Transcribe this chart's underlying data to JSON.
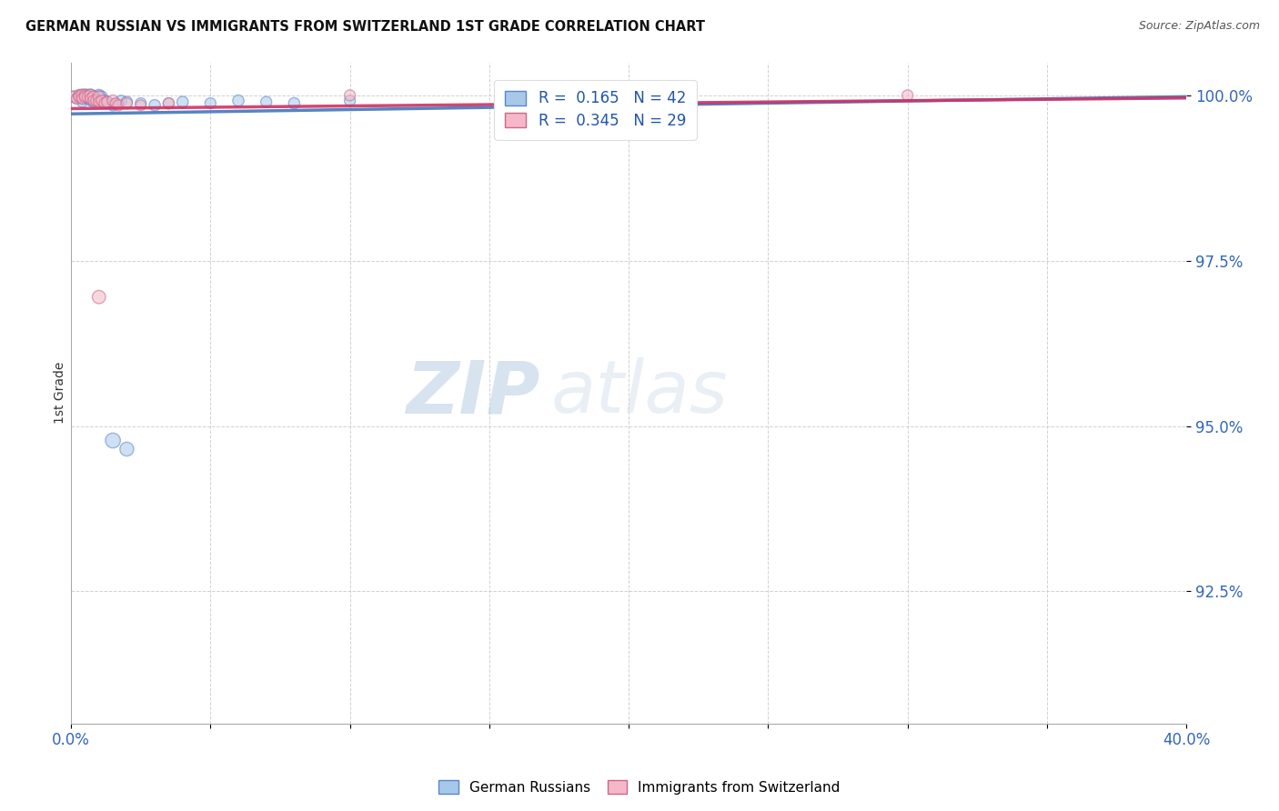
{
  "title": "GERMAN RUSSIAN VS IMMIGRANTS FROM SWITZERLAND 1ST GRADE CORRELATION CHART",
  "source": "Source: ZipAtlas.com",
  "ylabel": "1st Grade",
  "watermark_zip": "ZIP",
  "watermark_atlas": "atlas",
  "legend_line1": "R =  0.165   N = 42",
  "legend_line2": "R =  0.345   N = 29",
  "color_blue_face": "#a8c8e8",
  "color_blue_edge": "#5588cc",
  "color_pink_face": "#f4b8c8",
  "color_pink_edge": "#cc6688",
  "trendline_blue": "#4477bb",
  "trendline_pink": "#cc3366",
  "xlim": [
    0.0,
    0.4
  ],
  "ylim": [
    0.905,
    1.005
  ],
  "ytick_vals": [
    1.0,
    0.975,
    0.95,
    0.925
  ],
  "ytick_labels": [
    "100.0%",
    "97.5%",
    "95.0%",
    "92.5%"
  ],
  "xtick_vals": [
    0.0,
    0.05,
    0.1,
    0.15,
    0.2,
    0.25,
    0.3,
    0.35,
    0.4
  ],
  "xtick_labels": [
    "0.0%",
    "",
    "",
    "",
    "",
    "",
    "",
    "",
    "40.0%"
  ],
  "blue_trend_y0": 0.9972,
  "blue_trend_y1": 0.9998,
  "pink_trend_y0": 0.998,
  "pink_trend_y1": 0.9996,
  "blue_x": [
    0.001,
    0.002,
    0.003,
    0.003,
    0.004,
    0.004,
    0.004,
    0.005,
    0.005,
    0.005,
    0.006,
    0.006,
    0.006,
    0.007,
    0.007,
    0.007,
    0.008,
    0.008,
    0.009,
    0.009,
    0.01,
    0.01,
    0.01,
    0.011,
    0.012,
    0.012,
    0.013,
    0.015,
    0.016,
    0.018,
    0.02,
    0.025,
    0.03,
    0.035,
    0.04,
    0.05,
    0.06,
    0.07,
    0.08,
    0.1,
    0.015,
    0.02
  ],
  "blue_y": [
    0.9998,
    0.9995,
    1.0,
    0.9998,
    1.0,
    0.9995,
    0.999,
    1.0,
    0.9998,
    0.9995,
    1.0,
    0.9998,
    0.9995,
    1.0,
    0.9998,
    0.9992,
    0.9998,
    0.999,
    0.9998,
    0.9995,
    1.0,
    0.9998,
    0.9992,
    0.9998,
    0.9992,
    0.9988,
    0.999,
    0.9985,
    0.9988,
    0.9992,
    0.999,
    0.9988,
    0.9985,
    0.9988,
    0.999,
    0.9988,
    0.9992,
    0.999,
    0.9988,
    0.9992,
    0.9478,
    0.9465
  ],
  "blue_sizes": [
    80,
    70,
    80,
    70,
    90,
    80,
    70,
    100,
    80,
    70,
    90,
    80,
    70,
    100,
    80,
    70,
    80,
    70,
    80,
    70,
    90,
    80,
    70,
    80,
    80,
    70,
    80,
    80,
    70,
    75,
    80,
    75,
    80,
    75,
    80,
    75,
    80,
    75,
    80,
    75,
    140,
    120
  ],
  "pink_x": [
    0.001,
    0.002,
    0.003,
    0.003,
    0.004,
    0.004,
    0.005,
    0.005,
    0.006,
    0.007,
    0.007,
    0.008,
    0.008,
    0.009,
    0.01,
    0.01,
    0.011,
    0.012,
    0.013,
    0.015,
    0.016,
    0.017,
    0.02,
    0.025,
    0.035,
    0.1,
    0.2,
    0.3,
    0.01
  ],
  "pink_y": [
    0.9998,
    0.9995,
    1.0,
    0.9998,
    1.0,
    0.9995,
    1.0,
    0.9998,
    0.9998,
    1.0,
    0.9995,
    0.9998,
    0.9992,
    0.9992,
    0.9998,
    0.999,
    0.9992,
    0.9988,
    0.999,
    0.9992,
    0.9988,
    0.9985,
    0.9988,
    0.9985,
    0.9988,
    1.0,
    1.0,
    1.0,
    0.9695
  ],
  "pink_sizes": [
    80,
    70,
    90,
    80,
    90,
    75,
    85,
    75,
    80,
    90,
    75,
    80,
    70,
    75,
    85,
    70,
    75,
    75,
    80,
    80,
    70,
    75,
    75,
    70,
    75,
    75,
    75,
    75,
    110
  ]
}
